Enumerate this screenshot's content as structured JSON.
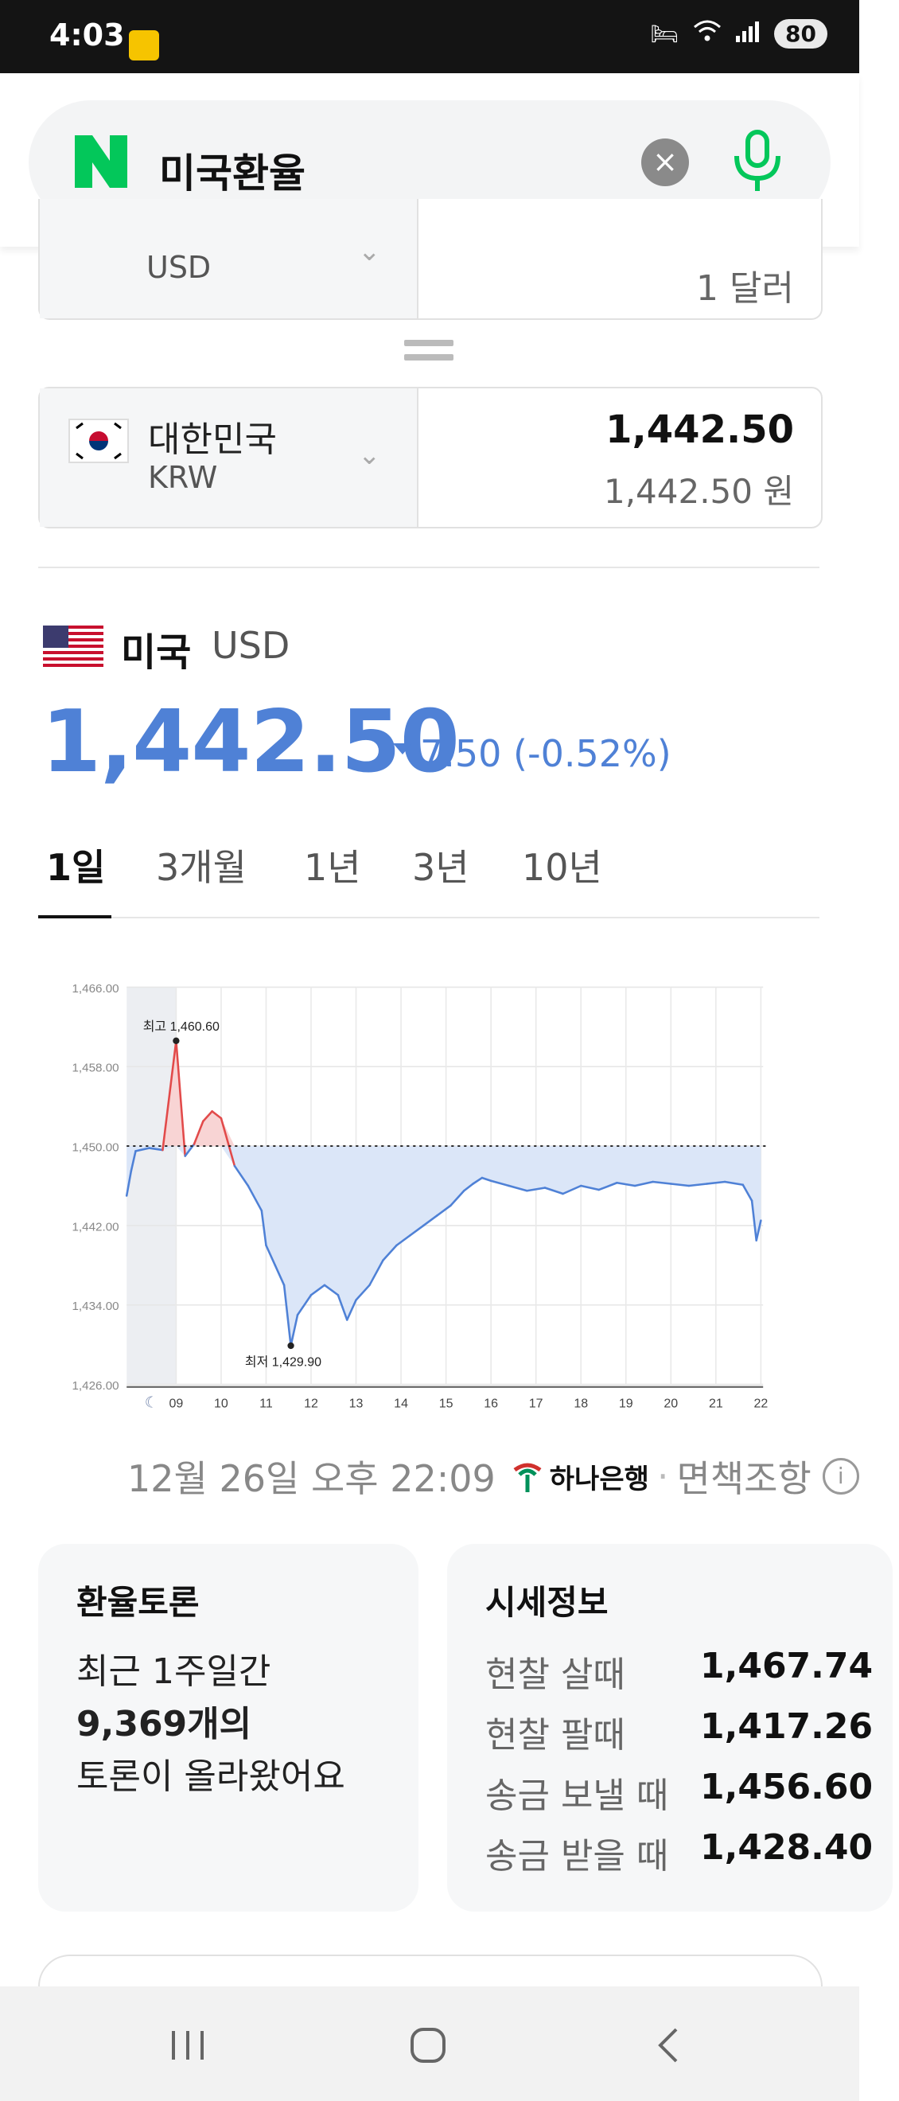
{
  "status_bar": {
    "time": "4:03",
    "battery": "80"
  },
  "search": {
    "query": "미국환율",
    "clear_label": "×"
  },
  "converter": {
    "from": {
      "code": "USD",
      "amount": "1 달러"
    },
    "to": {
      "country": "대한민국",
      "code": "KRW",
      "value": "1,442.50",
      "value_won": "1,442.50 원"
    }
  },
  "currency": {
    "name": "미국",
    "code": "USD",
    "rate": "1,442.50",
    "change": "7.50 (-0.52%)",
    "direction": "down"
  },
  "tabs": [
    {
      "label": "1일",
      "active": true
    },
    {
      "label": "3개월",
      "active": false
    },
    {
      "label": "1년",
      "active": false
    },
    {
      "label": "3년",
      "active": false
    },
    {
      "label": "10년",
      "active": false
    }
  ],
  "chart_data": {
    "type": "area",
    "yticks": [
      "1,466.00",
      "1,458.00",
      "1,450.00",
      "1,442.00",
      "1,434.00",
      "1,426.00"
    ],
    "ylim": [
      1426,
      1466
    ],
    "xticks": [
      "09",
      "10",
      "11",
      "12",
      "13",
      "14",
      "15",
      "16",
      "17",
      "18",
      "19",
      "20",
      "21",
      "22"
    ],
    "baseline": 1450,
    "high_label": "최고 1,460.60",
    "low_label": "최저 1,429.90",
    "high": 1460.6,
    "low": 1429.9,
    "night_icon": "moon-icon",
    "series": [
      {
        "x": [
          7.9,
          8.0,
          8.1,
          8.4,
          8.7,
          9.0,
          9.2,
          9.4,
          9.6,
          9.8,
          10.0,
          10.3,
          10.6,
          10.9,
          11.0,
          11.2,
          11.4,
          11.55,
          11.7,
          12.0,
          12.3,
          12.6,
          12.8,
          13.0,
          13.3,
          13.6,
          13.9,
          14.2,
          14.5,
          14.8,
          15.1,
          15.4,
          15.6,
          15.8,
          16.0,
          16.4,
          16.8,
          17.2,
          17.6,
          18.0,
          18.4,
          18.8,
          19.2,
          19.6,
          20.0,
          20.4,
          20.8,
          21.2,
          21.6,
          21.8,
          21.9,
          22.0
        ],
        "y": [
          1445.0,
          1447.5,
          1449.5,
          1449.8,
          1449.6,
          1460.6,
          1449.0,
          1450.2,
          1452.5,
          1453.5,
          1452.8,
          1448.0,
          1446.0,
          1443.5,
          1440.0,
          1438.0,
          1436.0,
          1429.9,
          1433.0,
          1435.0,
          1436.0,
          1435.0,
          1432.5,
          1434.5,
          1436.0,
          1438.5,
          1440.0,
          1441.0,
          1442.0,
          1443.0,
          1444.0,
          1445.5,
          1446.2,
          1446.8,
          1446.5,
          1446.0,
          1445.5,
          1445.8,
          1445.2,
          1446.0,
          1445.6,
          1446.3,
          1446.0,
          1446.4,
          1446.2,
          1446.0,
          1446.2,
          1446.4,
          1446.1,
          1444.5,
          1440.5,
          1442.5
        ]
      }
    ],
    "colors": {
      "line_up": "#e24a4a",
      "fill_up": "#f8d4d4",
      "line_down": "#4f81d6",
      "fill_down": "#dbe6f8"
    }
  },
  "source": {
    "timestamp": "12월 26일 오후 22:09",
    "bank": "하나은행",
    "disclaimer": "면책조항"
  },
  "discussion": {
    "title": "환율토론",
    "line1": "최근 1주일간",
    "count": "9,369개의",
    "line3": "토론이 올라왔어요"
  },
  "quotes": {
    "title": "시세정보",
    "rows": [
      {
        "label": "현찰 살때",
        "value": "1,467.74"
      },
      {
        "label": "현찰 팔때",
        "value": "1,417.26"
      },
      {
        "label": "송금 보낼 때",
        "value": "1,456.60"
      },
      {
        "label": "송금 받을 때",
        "value": "1,428.40"
      }
    ]
  }
}
